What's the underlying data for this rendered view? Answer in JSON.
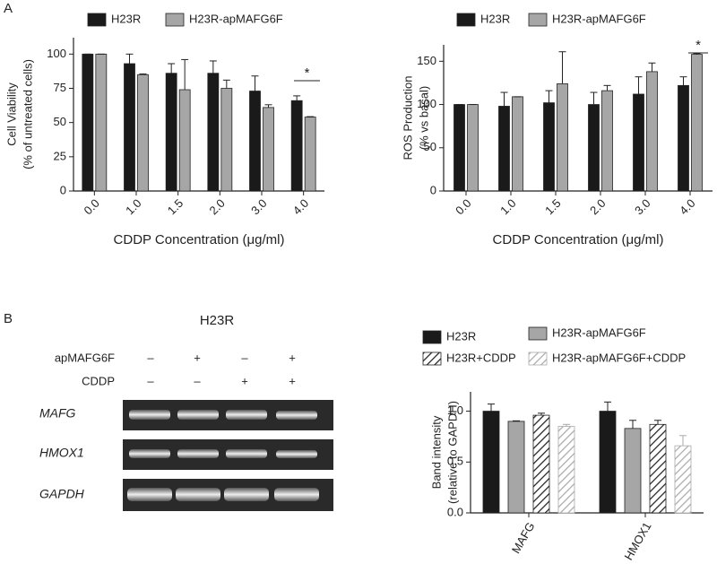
{
  "panel_labels": [
    "A",
    "B"
  ],
  "gel": {
    "title": "H23R",
    "rows": [
      {
        "label": "apMAFG6F",
        "signs": [
          "–",
          "+",
          "–",
          "+"
        ]
      },
      {
        "label": "CDDP",
        "signs": [
          "–",
          "–",
          "+",
          "+"
        ]
      }
    ],
    "bands": [
      "MAFG",
      "HMOX1",
      "GAPDH"
    ]
  },
  "chart_data": [
    {
      "type": "bar",
      "categories": [
        "0.0",
        "1.0",
        "1.5",
        "2.0",
        "3.0",
        "4.0"
      ],
      "series": [
        {
          "name": "H23R",
          "color": "#1a1a1a",
          "values": [
            100,
            93,
            86,
            86,
            73,
            66
          ],
          "errors": [
            0,
            7,
            7,
            9,
            11,
            3.5
          ]
        },
        {
          "name": "H23R-apMAFG6F",
          "color": "#a6a6a6",
          "values": [
            100,
            85,
            74,
            75,
            61,
            54
          ],
          "errors": [
            0,
            0.5,
            22,
            6,
            2,
            0.3
          ]
        }
      ],
      "ylabel": [
        "Cell Viability",
        "(% of untreated cells)"
      ],
      "xlabel": "CDDP Concentration (μg/ml)",
      "ylim": [
        0,
        112
      ],
      "yticks": [
        0,
        25,
        50,
        75,
        100
      ],
      "annotations": [
        "*"
      ]
    },
    {
      "type": "bar",
      "categories": [
        "0.0",
        "1.0",
        "1.5",
        "2.0",
        "3.0",
        "4.0"
      ],
      "series": [
        {
          "name": "H23R",
          "color": "#1a1a1a",
          "values": [
            100,
            98,
            102,
            100,
            112,
            122
          ],
          "errors": [
            0,
            16,
            14,
            14,
            20,
            10
          ]
        },
        {
          "name": "H23R-apMAFG6F",
          "color": "#a6a6a6",
          "values": [
            100,
            109,
            124,
            116,
            138,
            158
          ],
          "errors": [
            0,
            0,
            37,
            6,
            10,
            1
          ]
        }
      ],
      "ylabel": [
        "ROS Production",
        "(% vs basal)"
      ],
      "xlabel": "CDDP Concentration (μg/ml)",
      "ylim": [
        0,
        169
      ],
      "yticks": [
        0,
        50,
        100,
        150
      ],
      "annotations": [
        "*"
      ]
    },
    {
      "type": "bar",
      "categories": [
        "MAFG",
        "HMOX1"
      ],
      "series": [
        {
          "name": "H23R",
          "color": "#1a1a1a",
          "values": [
            1.0,
            1.0
          ],
          "errors": [
            0.07,
            0.09
          ]
        },
        {
          "name": "H23R-apMAFG6F",
          "color": "#a6a6a6",
          "values": [
            0.9,
            0.83
          ],
          "errors": [
            0.005,
            0.08
          ]
        },
        {
          "name": "H23R+CDDP",
          "color": "#222222",
          "hatch": true,
          "values": [
            0.96,
            0.87
          ],
          "errors": [
            0.02,
            0.04
          ]
        },
        {
          "name": "H23R-apMAFG6F+CDDP",
          "color": "#aaaaaa",
          "hatch": true,
          "values": [
            0.85,
            0.66
          ],
          "errors": [
            0.02,
            0.1
          ]
        }
      ],
      "ylabel": [
        "Band intensity",
        "(relative to GAPDH)"
      ],
      "ylim": [
        0,
        1.19
      ],
      "yticks": [
        {
          "value": 0,
          "label": "0.0"
        },
        {
          "value": 0.5,
          "label": "0.5"
        },
        {
          "value": 1,
          "label": "1.0"
        }
      ]
    }
  ]
}
